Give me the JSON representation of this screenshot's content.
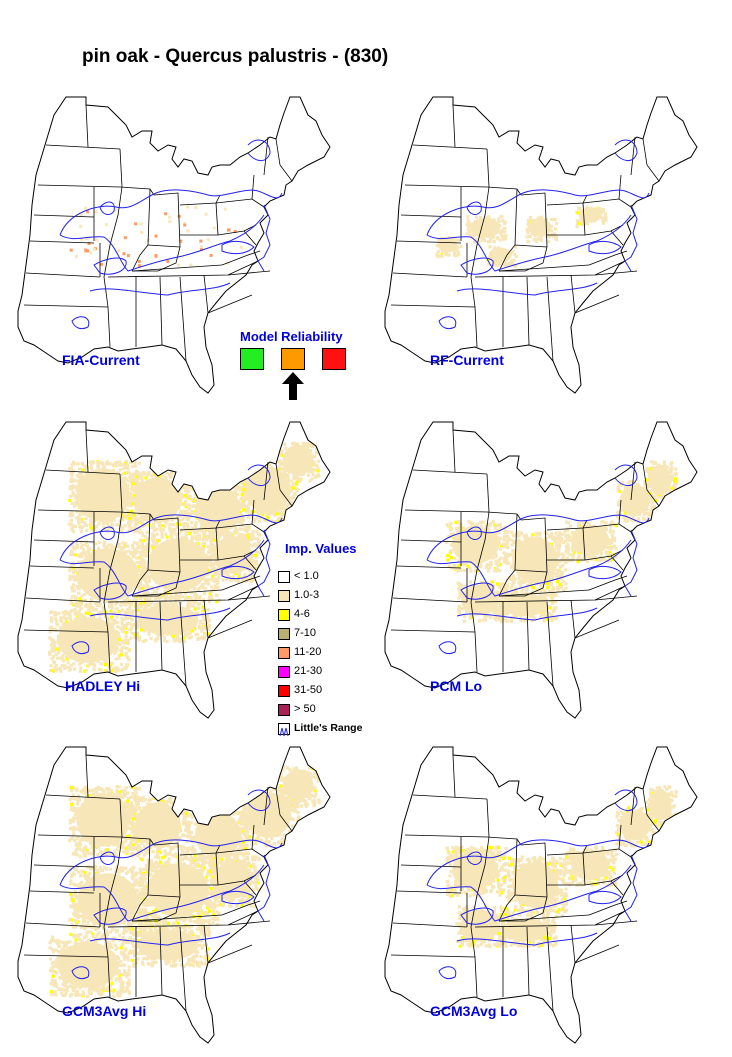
{
  "title": "pin oak - Quercus palustris - (830)",
  "maps": [
    {
      "label": "FIA-Current",
      "fill": "sparse-orange"
    },
    {
      "label": "RF-Current",
      "fill": "light"
    },
    {
      "label": "HADLEY Hi",
      "fill": "wide"
    },
    {
      "label": "PCM Lo",
      "fill": "medium"
    },
    {
      "label": "GCM3Avg Hi",
      "fill": "wide"
    },
    {
      "label": "GCM3Avg Lo",
      "fill": "medium"
    }
  ],
  "model_reliability": {
    "title": "Model Reliability",
    "colors": [
      "#22ee22",
      "#ff9900",
      "#ff1111"
    ],
    "selected_index": 1
  },
  "legend": {
    "title": "Imp. Values",
    "items": [
      {
        "label": "< 1.0",
        "color": "#ffffff"
      },
      {
        "label": "1.0-3",
        "color": "#f7e6b8"
      },
      {
        "label": "4-6",
        "color": "#ffff00"
      },
      {
        "label": "7-10",
        "color": "#b8b070"
      },
      {
        "label": "11-20",
        "color": "#ff9966"
      },
      {
        "label": "21-30",
        "color": "#ff00ff"
      },
      {
        "label": "31-50",
        "color": "#ff0000"
      },
      {
        "label": "> 50",
        "color": "#aa2255"
      },
      {
        "label": "Little's Range",
        "color": "#ffffff"
      }
    ]
  },
  "colors": {
    "label_blue": "#0000dd",
    "range_line": "#2222ee",
    "boundary": "#000000"
  }
}
